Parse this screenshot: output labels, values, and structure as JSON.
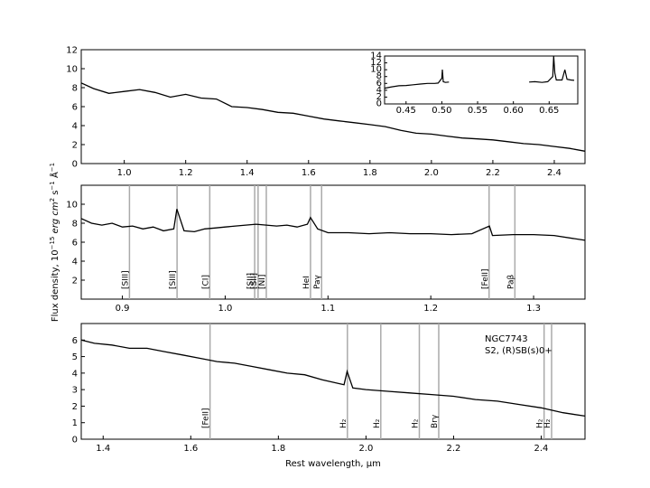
{
  "chart_data": [
    {
      "type": "line",
      "panel": "top",
      "xlim": [
        0.86,
        2.5
      ],
      "ylim": [
        0,
        12
      ],
      "xticks": [
        "1.0",
        "1.2",
        "1.4",
        "1.6",
        "1.8",
        "2.0",
        "2.2",
        "2.4"
      ],
      "yticks": [
        "0",
        "2",
        "4",
        "6",
        "8",
        "10",
        "12"
      ],
      "grid": false,
      "series": [
        {
          "style": "black spectrum, gray in telluric regions",
          "x": [
            0.86,
            0.9,
            0.95,
            1.0,
            1.05,
            1.1,
            1.15,
            1.2,
            1.25,
            1.3,
            1.35,
            1.4,
            1.45,
            1.5,
            1.55,
            1.6,
            1.65,
            1.7,
            1.75,
            1.8,
            1.85,
            1.9,
            1.95,
            2.0,
            2.05,
            2.1,
            2.15,
            2.2,
            2.25,
            2.3,
            2.35,
            2.4,
            2.45,
            2.5
          ],
          "y": [
            8.5,
            7.9,
            7.4,
            7.6,
            7.8,
            7.5,
            7.0,
            7.3,
            6.9,
            6.8,
            6.0,
            5.9,
            5.7,
            5.4,
            5.3,
            5.0,
            4.7,
            4.5,
            4.3,
            4.1,
            3.9,
            3.5,
            3.2,
            3.1,
            2.9,
            2.7,
            2.6,
            2.5,
            2.3,
            2.1,
            2.0,
            1.8,
            1.6,
            1.3
          ]
        }
      ],
      "inset": {
        "type": "line",
        "xlim": [
          0.42,
          0.69
        ],
        "ylim": [
          0,
          14
        ],
        "xticks": [
          "0.45",
          "0.50",
          "0.55",
          "0.60",
          "0.65"
        ],
        "yticks": [
          "0",
          "2",
          "4",
          "6",
          "8",
          "10",
          "12",
          "14"
        ],
        "segments": [
          {
            "x": [
              0.42,
              0.43,
              0.44,
              0.45,
              0.46,
              0.47,
              0.48,
              0.49,
              0.495,
              0.5,
              0.5007,
              0.502,
              0.505,
              0.51
            ],
            "y": [
              4.6,
              5.0,
              5.3,
              5.4,
              5.6,
              5.8,
              6.0,
              6.0,
              6.1,
              7.5,
              10.0,
              6.5,
              6.3,
              6.4
            ]
          },
          {
            "x": [
              0.622,
              0.63,
              0.64,
              0.648,
              0.655,
              0.6563,
              0.658,
              0.66,
              0.668,
              0.672,
              0.675,
              0.68,
              0.685
            ],
            "y": [
              6.4,
              6.5,
              6.3,
              6.5,
              8.0,
              14.0,
              9.0,
              7.0,
              7.0,
              10.0,
              7.2,
              7.0,
              6.9
            ]
          }
        ]
      }
    },
    {
      "type": "line",
      "panel": "middle",
      "xlim": [
        0.86,
        1.35
      ],
      "ylim": [
        0,
        12
      ],
      "xticks": [
        "0.9",
        "1.0",
        "1.1",
        "1.2",
        "1.3"
      ],
      "yticks": [
        "2",
        "4",
        "6",
        "8",
        "10"
      ],
      "grid": false,
      "series": [
        {
          "style": "black spectrum, gray at the red end",
          "x": [
            0.86,
            0.87,
            0.88,
            0.89,
            0.9,
            0.91,
            0.92,
            0.93,
            0.94,
            0.95,
            0.953,
            0.96,
            0.97,
            0.98,
            0.99,
            1.0,
            1.01,
            1.02,
            1.03,
            1.04,
            1.05,
            1.06,
            1.07,
            1.08,
            1.083,
            1.09,
            1.1,
            1.12,
            1.14,
            1.16,
            1.18,
            1.2,
            1.22,
            1.24,
            1.257,
            1.26,
            1.28,
            1.3,
            1.32,
            1.35
          ],
          "y": [
            8.5,
            8.0,
            7.8,
            8.0,
            7.6,
            7.7,
            7.4,
            7.6,
            7.2,
            7.4,
            9.5,
            7.2,
            7.1,
            7.4,
            7.5,
            7.6,
            7.7,
            7.8,
            7.9,
            7.8,
            7.7,
            7.8,
            7.6,
            7.9,
            8.6,
            7.4,
            7.0,
            7.0,
            6.9,
            7.0,
            6.9,
            6.9,
            6.8,
            6.9,
            7.7,
            6.7,
            6.8,
            6.8,
            6.7,
            6.2
          ]
        }
      ],
      "lines": [
        {
          "x": 0.9069,
          "label": "[SIII]"
        },
        {
          "x": 0.9532,
          "label": "[SIII]"
        },
        {
          "x": 0.985,
          "label": "[CI]"
        },
        {
          "x": 1.0287,
          "label": "[SII]"
        },
        {
          "x": 1.032,
          "label": "[SII]"
        },
        {
          "x": 1.04,
          "label": "[NI]"
        },
        {
          "x": 1.083,
          "label": "HeI"
        },
        {
          "x": 1.0938,
          "label": "Paγ"
        },
        {
          "x": 1.2567,
          "label": "[FeII]"
        },
        {
          "x": 1.2818,
          "label": "Paβ"
        }
      ]
    },
    {
      "type": "line",
      "panel": "bottom",
      "xlim": [
        1.35,
        2.5
      ],
      "ylim": [
        0,
        7
      ],
      "xticks": [
        "1.4",
        "1.6",
        "1.8",
        "2.0",
        "2.2",
        "2.4"
      ],
      "yticks": [
        "0",
        "1",
        "2",
        "3",
        "4",
        "5",
        "6"
      ],
      "grid": false,
      "series": [
        {
          "style": "black spectrum, gray in telluric regions",
          "x": [
            1.35,
            1.38,
            1.42,
            1.46,
            1.5,
            1.54,
            1.58,
            1.62,
            1.66,
            1.7,
            1.74,
            1.78,
            1.82,
            1.86,
            1.9,
            1.95,
            1.957,
            1.97,
            2.0,
            2.05,
            2.1,
            2.15,
            2.2,
            2.25,
            2.3,
            2.35,
            2.4,
            2.45,
            2.5
          ],
          "y": [
            6.0,
            5.8,
            5.7,
            5.5,
            5.5,
            5.3,
            5.1,
            4.9,
            4.7,
            4.6,
            4.4,
            4.2,
            4.0,
            3.9,
            3.6,
            3.3,
            4.1,
            3.1,
            3.0,
            2.9,
            2.8,
            2.7,
            2.6,
            2.4,
            2.3,
            2.1,
            1.9,
            1.6,
            1.4
          ]
        }
      ],
      "lines": [
        {
          "x": 1.644,
          "label": "[FeII]"
        },
        {
          "x": 1.9576,
          "label": "H₂"
        },
        {
          "x": 2.0338,
          "label": "H₂"
        },
        {
          "x": 2.1218,
          "label": "H₂"
        },
        {
          "x": 2.1661,
          "label": "Brγ"
        },
        {
          "x": 2.4066,
          "label": "H₂"
        },
        {
          "x": 2.4237,
          "label": "H₂"
        }
      ],
      "annotations": [
        "NGC7743",
        "S2,  (R)SB(s)0+"
      ]
    }
  ],
  "labels": {
    "xlabel": "Rest wavelength, μm",
    "ylabel_prefix": "Flux density, 10",
    "ylabel_exp": "−15",
    "ylabel_units": " erg  cm",
    "ylabel_units_exp": "2",
    "ylabel_s": " s",
    "ylabel_s_exp": "−1",
    "ylabel_A": " Å",
    "ylabel_A_exp": "−1"
  },
  "colors": {
    "spectrum": "#000000",
    "telluric": "#999999",
    "emission_line": "#aaaaaa"
  }
}
